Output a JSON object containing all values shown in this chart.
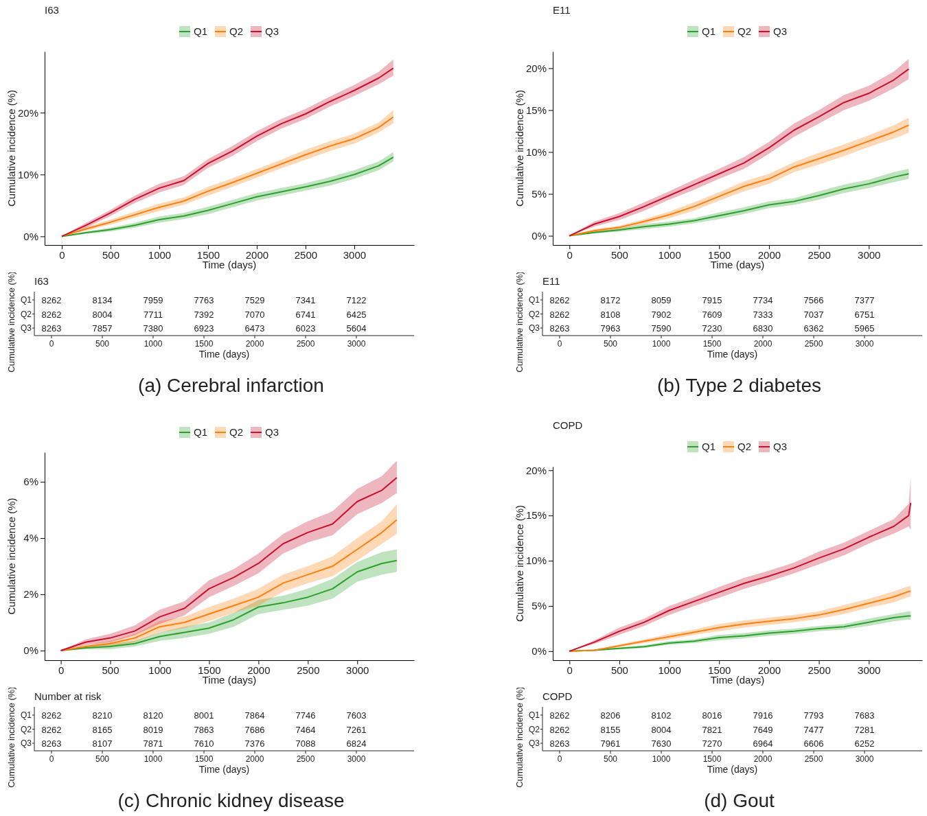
{
  "chart_data": [
    {
      "type": "line",
      "title": "I63",
      "xlabel": "Time (days)",
      "ylabel": "Cumulative incidence (%)",
      "legend": "top",
      "x": [
        0,
        250,
        500,
        750,
        1000,
        1250,
        1500,
        1750,
        2000,
        2250,
        2500,
        2750,
        3000,
        3250,
        3400
      ],
      "xlim": [
        -176,
        3613
      ],
      "xticks": [
        0,
        500,
        1000,
        1500,
        2000,
        2500,
        3000
      ],
      "ylim": [
        -1.4,
        29.9
      ],
      "yticks": [
        {
          "value": 0,
          "label": "0%"
        },
        {
          "value": 10,
          "label": "10%"
        },
        {
          "value": 20,
          "label": "20%"
        }
      ],
      "series": [
        {
          "name": "Q1",
          "color": "#2ca02c",
          "values": [
            0,
            0.6,
            1.1,
            1.8,
            2.7,
            3.3,
            4.2,
            5.3,
            6.4,
            7.2,
            8.0,
            8.9,
            10.0,
            11.4,
            12.8
          ],
          "lower": [
            0,
            0.4,
            0.8,
            1.4,
            2.2,
            2.8,
            3.6,
            4.7,
            5.8,
            6.6,
            7.4,
            8.2,
            9.3,
            10.7,
            12.1
          ],
          "upper": [
            0,
            0.8,
            1.4,
            2.2,
            3.2,
            3.8,
            4.8,
            5.9,
            7.0,
            7.8,
            8.6,
            9.6,
            10.7,
            12.1,
            13.6
          ]
        },
        {
          "name": "Q2",
          "color": "#ff7f0e",
          "values": [
            0,
            1.2,
            2.3,
            3.5,
            4.7,
            5.7,
            7.3,
            8.7,
            10.2,
            11.7,
            13.2,
            14.6,
            15.8,
            17.6,
            19.3
          ],
          "lower": [
            0,
            0.9,
            1.9,
            3.0,
            4.1,
            5.1,
            6.6,
            8.0,
            9.5,
            11.0,
            12.4,
            13.8,
            15.0,
            16.8,
            18.3
          ],
          "upper": [
            0,
            1.5,
            2.7,
            4.0,
            5.3,
            6.3,
            8.0,
            9.4,
            10.9,
            12.4,
            14.0,
            15.4,
            16.6,
            18.4,
            20.4
          ]
        },
        {
          "name": "Q3",
          "color": "#c8102e",
          "values": [
            0,
            1.8,
            3.8,
            6.0,
            7.8,
            9.0,
            11.8,
            13.8,
            16.2,
            18.2,
            19.8,
            21.8,
            23.6,
            25.6,
            27.2
          ],
          "lower": [
            0,
            1.4,
            3.3,
            5.4,
            7.1,
            8.3,
            11.1,
            13.0,
            15.4,
            17.4,
            19.0,
            21.0,
            22.7,
            24.6,
            26.0
          ],
          "upper": [
            0,
            2.2,
            4.3,
            6.6,
            8.5,
            9.7,
            12.5,
            14.6,
            17.0,
            19.0,
            20.6,
            22.6,
            24.5,
            26.6,
            28.6
          ]
        }
      ]
    },
    {
      "type": "heatmap",
      "title": "I63",
      "xlabel": "Time (days)",
      "ylabel": "Cumulative incidence (%)",
      "data_labels": true,
      "annotations": [
        "(a) Cerebral infarction"
      ],
      "categories": [
        "0",
        "500",
        "1000",
        "1500",
        "2000",
        "2500",
        "3000"
      ],
      "y_categories": [
        "Q1",
        "Q2",
        "Q3"
      ],
      "cells": [
        [
          8262,
          8134,
          7959,
          7763,
          7529,
          7341,
          7122
        ],
        [
          8262,
          8004,
          7711,
          7392,
          7070,
          6741,
          6425
        ],
        [
          8263,
          7857,
          7380,
          6923,
          6473,
          6023,
          5604
        ]
      ]
    },
    {
      "type": "line",
      "title": "E11",
      "xlabel": "Time (days)",
      "ylabel": "Cumulative incidence (%)",
      "legend": "top",
      "x": [
        0,
        250,
        500,
        750,
        1000,
        1250,
        1500,
        1750,
        2000,
        2250,
        2500,
        2750,
        3000,
        3250,
        3400
      ],
      "xlim": [
        -167,
        3535
      ],
      "xticks": [
        0,
        500,
        1000,
        1500,
        2000,
        2500,
        3000
      ],
      "ylim": [
        -1.1,
        22.0
      ],
      "yticks": [
        {
          "value": 0,
          "label": "0%"
        },
        {
          "value": 5,
          "label": "5%"
        },
        {
          "value": 10,
          "label": "10%"
        },
        {
          "value": 15,
          "label": "15%"
        },
        {
          "value": 20,
          "label": "20%"
        }
      ],
      "series": [
        {
          "name": "Q1",
          "color": "#2ca02c",
          "values": [
            0,
            0.4,
            0.7,
            1.1,
            1.4,
            1.8,
            2.4,
            3.0,
            3.7,
            4.1,
            4.8,
            5.6,
            6.2,
            7.0,
            7.4
          ],
          "lower": [
            0,
            0.3,
            0.5,
            0.8,
            1.1,
            1.5,
            2.0,
            2.6,
            3.3,
            3.7,
            4.3,
            5.1,
            5.7,
            6.4,
            6.8
          ],
          "upper": [
            0,
            0.5,
            0.9,
            1.4,
            1.7,
            2.1,
            2.8,
            3.4,
            4.1,
            4.5,
            5.3,
            6.1,
            6.7,
            7.6,
            8.0
          ]
        },
        {
          "name": "Q2",
          "color": "#ff7f0e",
          "values": [
            0,
            0.6,
            1.0,
            1.7,
            2.5,
            3.5,
            4.7,
            5.9,
            6.8,
            8.2,
            9.2,
            10.2,
            11.3,
            12.4,
            13.2
          ],
          "lower": [
            0,
            0.4,
            0.8,
            1.4,
            2.1,
            3.0,
            4.2,
            5.3,
            6.2,
            7.6,
            8.5,
            9.5,
            10.6,
            11.6,
            12.3
          ],
          "upper": [
            0,
            0.8,
            1.2,
            2.0,
            2.9,
            4.0,
            5.2,
            6.5,
            7.4,
            8.8,
            9.9,
            10.9,
            12.0,
            13.2,
            14.1
          ]
        },
        {
          "name": "Q3",
          "color": "#c8102e",
          "values": [
            0,
            1.4,
            2.3,
            3.5,
            4.8,
            6.1,
            7.4,
            8.7,
            10.5,
            12.6,
            14.2,
            15.9,
            17.0,
            18.6,
            19.9
          ],
          "lower": [
            0,
            1.1,
            1.9,
            3.0,
            4.3,
            5.5,
            6.8,
            8.0,
            9.8,
            11.8,
            13.4,
            15.0,
            16.1,
            17.6,
            18.7
          ],
          "upper": [
            0,
            1.7,
            2.7,
            4.0,
            5.3,
            6.7,
            8.0,
            9.4,
            11.2,
            13.4,
            15.0,
            16.8,
            17.9,
            19.6,
            21.1
          ]
        }
      ]
    },
    {
      "type": "heatmap",
      "title": "E11",
      "xlabel": "Time (days)",
      "ylabel": "Cumulative incidence (%)",
      "data_labels": true,
      "annotations": [
        "(b) Type 2 diabetes"
      ],
      "categories": [
        "0",
        "500",
        "1000",
        "1500",
        "2000",
        "2500",
        "3000"
      ],
      "y_categories": [
        "Q1",
        "Q2",
        "Q3"
      ],
      "cells": [
        [
          8262,
          8172,
          8059,
          7915,
          7734,
          7566,
          7377
        ],
        [
          8262,
          8108,
          7902,
          7609,
          7333,
          7037,
          6751
        ],
        [
          8263,
          7963,
          7590,
          7230,
          6830,
          6362,
          5965
        ]
      ]
    },
    {
      "type": "line",
      "xlabel": "Time (days)",
      "ylabel": "Cumulative incidence (%)",
      "legend": "top",
      "x": [
        0,
        250,
        500,
        750,
        1000,
        1250,
        1500,
        1750,
        2000,
        2250,
        2500,
        2750,
        3000,
        3250,
        3400
      ],
      "xlim": [
        -164,
        3575
      ],
      "xticks": [
        0,
        500,
        1000,
        1500,
        2000,
        2500,
        3000
      ],
      "ylim": [
        -0.34,
        7.05
      ],
      "yticks": [
        {
          "value": 0,
          "label": "0%"
        },
        {
          "value": 2,
          "label": "2%"
        },
        {
          "value": 4,
          "label": "4%"
        },
        {
          "value": 6,
          "label": "6%"
        }
      ],
      "series": [
        {
          "name": "Q1",
          "color": "#2ca02c",
          "values": [
            0,
            0.1,
            0.15,
            0.25,
            0.5,
            0.65,
            0.8,
            1.1,
            1.55,
            1.7,
            1.9,
            2.2,
            2.8,
            3.1,
            3.2
          ],
          "lower": [
            0,
            0.05,
            0.05,
            0.15,
            0.35,
            0.45,
            0.6,
            0.85,
            1.3,
            1.45,
            1.6,
            1.85,
            2.45,
            2.7,
            2.8
          ],
          "upper": [
            0,
            0.15,
            0.25,
            0.35,
            0.65,
            0.85,
            1.0,
            1.35,
            1.8,
            1.95,
            2.2,
            2.55,
            3.15,
            3.5,
            3.6
          ]
        },
        {
          "name": "Q2",
          "color": "#ff7f0e",
          "values": [
            0,
            0.15,
            0.25,
            0.45,
            0.85,
            1.0,
            1.3,
            1.6,
            1.9,
            2.4,
            2.7,
            3.0,
            3.6,
            4.2,
            4.65
          ],
          "lower": [
            0,
            0.1,
            0.15,
            0.3,
            0.65,
            0.8,
            1.05,
            1.35,
            1.6,
            2.1,
            2.4,
            2.65,
            3.2,
            3.8,
            4.15
          ],
          "upper": [
            0,
            0.2,
            0.35,
            0.6,
            1.05,
            1.2,
            1.55,
            1.85,
            2.2,
            2.7,
            3.0,
            3.35,
            4.0,
            4.6,
            5.2
          ]
        },
        {
          "name": "Q3",
          "color": "#c8102e",
          "values": [
            0,
            0.3,
            0.45,
            0.7,
            1.2,
            1.5,
            2.2,
            2.6,
            3.1,
            3.8,
            4.2,
            4.5,
            5.3,
            5.7,
            6.15
          ],
          "lower": [
            0,
            0.2,
            0.3,
            0.55,
            0.95,
            1.25,
            1.9,
            2.3,
            2.75,
            3.45,
            3.85,
            4.1,
            4.85,
            5.25,
            5.6
          ],
          "upper": [
            0,
            0.4,
            0.6,
            0.9,
            1.45,
            1.75,
            2.5,
            2.9,
            3.45,
            4.15,
            4.6,
            4.95,
            5.75,
            6.2,
            6.75
          ]
        }
      ]
    },
    {
      "type": "heatmap",
      "title": "Number at risk",
      "xlabel": "Time (days)",
      "ylabel": "Cumulative incidence (%)",
      "data_labels": true,
      "annotations": [
        "(c) Chronic kidney disease"
      ],
      "categories": [
        "0",
        "500",
        "1000",
        "1500",
        "2000",
        "2500",
        "3000"
      ],
      "y_categories": [
        "Q1",
        "Q2",
        "Q3"
      ],
      "cells": [
        [
          8262,
          8210,
          8120,
          8001,
          7864,
          7746,
          7603
        ],
        [
          8262,
          8165,
          8019,
          7863,
          7686,
          7464,
          7261
        ],
        [
          8263,
          8107,
          7871,
          7610,
          7376,
          7088,
          6824
        ]
      ]
    },
    {
      "type": "line",
      "title": "COPD",
      "xlabel": "Time (days)",
      "ylabel": "Cumulative incidence (%)",
      "legend": "top",
      "x": [
        0,
        250,
        500,
        750,
        1000,
        1250,
        1500,
        1750,
        2000,
        2250,
        2500,
        2750,
        3000,
        3250,
        3400,
        3420
      ],
      "xlim": [
        -167,
        3535
      ],
      "xticks": [
        0,
        500,
        1000,
        1500,
        2000,
        2500,
        3000
      ],
      "ylim": [
        -1.0,
        20.4
      ],
      "yticks": [
        {
          "value": 0,
          "label": "0%"
        },
        {
          "value": 5,
          "label": "5%"
        },
        {
          "value": 10,
          "label": "10%"
        },
        {
          "value": 15,
          "label": "15%"
        },
        {
          "value": 20,
          "label": "20%"
        }
      ],
      "series": [
        {
          "name": "Q1",
          "color": "#2ca02c",
          "values": [
            0,
            0.1,
            0.3,
            0.5,
            0.9,
            1.1,
            1.5,
            1.7,
            2.0,
            2.2,
            2.5,
            2.7,
            3.2,
            3.7,
            3.9,
            3.9
          ],
          "lower": [
            0,
            0.05,
            0.2,
            0.35,
            0.7,
            0.9,
            1.2,
            1.4,
            1.7,
            1.9,
            2.2,
            2.4,
            2.8,
            3.3,
            3.5,
            3.5
          ],
          "upper": [
            0,
            0.15,
            0.4,
            0.65,
            1.1,
            1.3,
            1.8,
            2.0,
            2.3,
            2.5,
            2.8,
            3.0,
            3.6,
            4.1,
            4.4,
            4.4
          ]
        },
        {
          "name": "Q2",
          "color": "#ff7f0e",
          "values": [
            0,
            0.1,
            0.6,
            1.1,
            1.6,
            2.1,
            2.6,
            3.0,
            3.3,
            3.6,
            4.0,
            4.6,
            5.3,
            6.0,
            6.6,
            6.6
          ],
          "lower": [
            0,
            0.05,
            0.45,
            0.9,
            1.3,
            1.8,
            2.2,
            2.6,
            2.9,
            3.2,
            3.6,
            4.1,
            4.8,
            5.4,
            6.0,
            6.0
          ],
          "upper": [
            0,
            0.15,
            0.75,
            1.3,
            1.9,
            2.4,
            3.0,
            3.4,
            3.7,
            4.0,
            4.4,
            5.1,
            5.8,
            6.6,
            7.2,
            7.2
          ]
        },
        {
          "name": "Q3",
          "color": "#c8102e",
          "values": [
            0,
            1.0,
            2.2,
            3.2,
            4.5,
            5.5,
            6.5,
            7.5,
            8.3,
            9.2,
            10.3,
            11.3,
            12.6,
            13.8,
            15.0,
            16.4
          ],
          "lower": [
            0,
            0.8,
            1.8,
            2.8,
            4.0,
            5.0,
            5.9,
            6.9,
            7.7,
            8.6,
            9.6,
            10.6,
            11.9,
            13.0,
            13.8,
            13.4
          ],
          "upper": [
            0,
            1.2,
            2.6,
            3.6,
            5.0,
            6.0,
            7.1,
            8.1,
            8.9,
            9.8,
            11.0,
            12.0,
            13.3,
            14.6,
            16.3,
            19.3
          ]
        }
      ]
    },
    {
      "type": "heatmap",
      "title": "COPD",
      "xlabel": "Time (days)",
      "ylabel": "Cumulative incidence (%)",
      "data_labels": true,
      "annotations": [
        "(d) Gout"
      ],
      "categories": [
        "0",
        "500",
        "1000",
        "1500",
        "2000",
        "2500",
        "3000"
      ],
      "y_categories": [
        "Q1",
        "Q2",
        "Q3"
      ],
      "cells": [
        [
          8262,
          8206,
          8102,
          8016,
          7916,
          7793,
          7683
        ],
        [
          8262,
          8155,
          8004,
          7821,
          7649,
          7477,
          7281
        ],
        [
          8263,
          7961,
          7630,
          7270,
          6964,
          6606,
          6252
        ]
      ]
    }
  ]
}
